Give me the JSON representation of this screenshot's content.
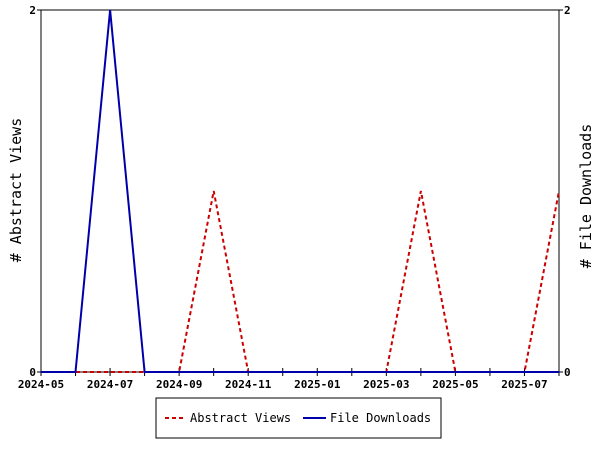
{
  "chart_data": {
    "type": "line",
    "x_axis": {
      "ticks": [
        "2024-05",
        "2024-06",
        "2024-07",
        "2024-08",
        "2024-09",
        "2024-10",
        "2024-11",
        "2024-12",
        "2025-01",
        "2025-02",
        "2025-03",
        "2025-04",
        "2025-05",
        "2025-06",
        "2025-07",
        "2025-08"
      ],
      "labels": [
        "2024-05",
        "2024-07",
        "2024-09",
        "2024-11",
        "2025-01",
        "2025-03",
        "2025-05",
        "2025-07"
      ]
    },
    "y_left": {
      "title": "# Abstract Views",
      "ylim": [
        0,
        2
      ],
      "ticks": [
        "0",
        "2"
      ]
    },
    "y_right": {
      "title": "# File Downloads",
      "ylim": [
        0,
        2
      ],
      "ticks": [
        "0",
        "2"
      ]
    },
    "categories": [
      "2024-05",
      "2024-06",
      "2024-07",
      "2024-08",
      "2024-09",
      "2024-10",
      "2024-11",
      "2024-12",
      "2025-01",
      "2025-02",
      "2025-03",
      "2025-04",
      "2025-05",
      "2025-06",
      "2025-07",
      "2025-08"
    ],
    "series": [
      {
        "name": "Abstract Views",
        "axis": "left",
        "color": "#cc0000",
        "dash": true,
        "values": [
          0,
          0,
          0,
          0,
          0,
          1,
          0,
          0,
          0,
          0,
          0,
          1,
          0,
          0,
          0,
          1
        ]
      },
      {
        "name": "File Downloads",
        "axis": "right",
        "color": "#0000aa",
        "dash": false,
        "values": [
          0,
          0,
          2,
          0,
          0,
          0,
          0,
          0,
          0,
          0,
          0,
          0,
          0,
          0,
          0,
          0
        ]
      }
    ],
    "legend": {
      "placement": "bottom"
    },
    "grid": false
  }
}
